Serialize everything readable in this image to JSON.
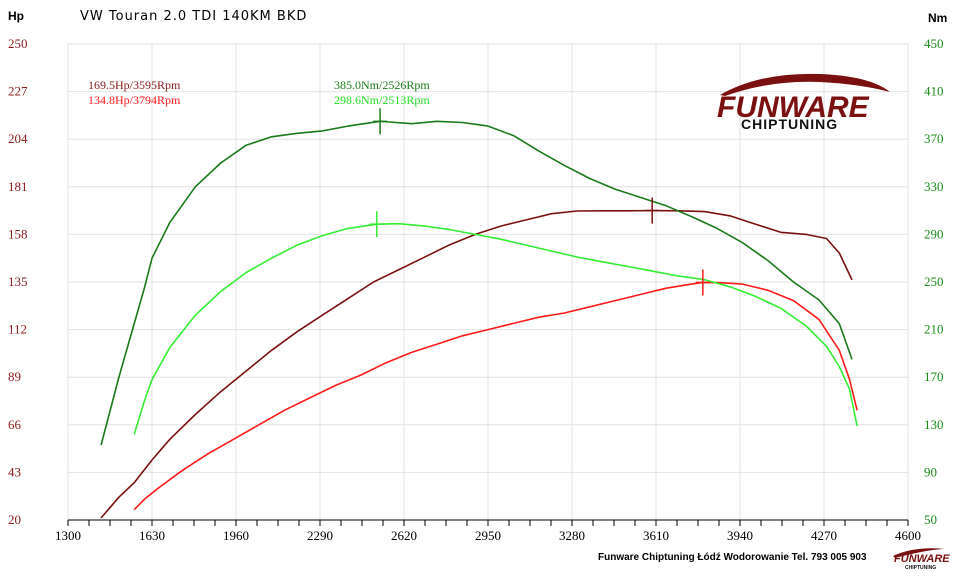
{
  "title": "VW Touran 2.0 TDI 140KM BKD",
  "footer": "Funware Chiptuning Łódź Wodorowanie Tel. 793 005 903",
  "logo": {
    "main": "FUNWARE",
    "sub": "CHIPTUNING",
    "mini_main": "FUNWARE",
    "mini_sub": "CHIPTUNING"
  },
  "chart_data": {
    "type": "line",
    "y_left_label": "Hp",
    "y_right_label": "Nm",
    "x_ticks": [
      1300,
      1630,
      1960,
      2290,
      2620,
      2950,
      3280,
      3610,
      3940,
      4270,
      4600
    ],
    "y_left_ticks": [
      20,
      43,
      66,
      89,
      112,
      135,
      158,
      181,
      204,
      227,
      250
    ],
    "y_right_ticks": [
      50,
      90,
      130,
      170,
      210,
      250,
      290,
      330,
      370,
      410,
      450
    ],
    "xlim": [
      1300,
      4600
    ],
    "ylim_left": [
      20,
      250
    ],
    "ylim_right": [
      50,
      450
    ],
    "grid": true,
    "colors": {
      "tuned_hp": "#7a1010",
      "stock_hp": "#ff1a1a",
      "tuned_nm": "#1a7a1a",
      "stock_nm": "#33ee33"
    },
    "annotations": [
      {
        "text": "169.5Hp/3595Rpm",
        "color": "#8b1a1a"
      },
      {
        "text": "134.8Hp/3794Rpm",
        "color": "#ff1a1a"
      },
      {
        "text": "385.0Nm/2526Rpm",
        "color": "#1a7a1a"
      },
      {
        "text": "298.6Nm/2513Rpm",
        "color": "#22dd22"
      }
    ],
    "series": [
      {
        "key": "tuned_hp",
        "axis": "left",
        "x": [
          1430,
          1500,
          1560,
          1630,
          1700,
          1800,
          1900,
          2000,
          2100,
          2200,
          2300,
          2400,
          2500,
          2600,
          2700,
          2800,
          2900,
          3000,
          3100,
          3200,
          3300,
          3400,
          3500,
          3595,
          3700,
          3800,
          3900,
          4000,
          4100,
          4200,
          4280,
          4330,
          4380
        ],
        "y": [
          21,
          31,
          38,
          49,
          59,
          71,
          82,
          92,
          102,
          111,
          119,
          127,
          135,
          141,
          147,
          153,
          158,
          162,
          165,
          168,
          169.3,
          169.4,
          169.4,
          169.5,
          169.4,
          169,
          167,
          163,
          159,
          158,
          156,
          149,
          136
        ]
      },
      {
        "key": "stock_hp",
        "axis": "left",
        "x": [
          1560,
          1600,
          1650,
          1750,
          1850,
          1950,
          2050,
          2150,
          2250,
          2350,
          2450,
          2550,
          2650,
          2750,
          2850,
          2950,
          3050,
          3150,
          3250,
          3350,
          3450,
          3550,
          3650,
          3750,
          3794,
          3850,
          3950,
          4050,
          4150,
          4250,
          4330,
          4370,
          4400
        ],
        "y": [
          25,
          30,
          35,
          44,
          52,
          59,
          66,
          73,
          79,
          85,
          90,
          96,
          101,
          105,
          109,
          112,
          115,
          118,
          120,
          123,
          126,
          129,
          132,
          134,
          134.8,
          134.7,
          134,
          131,
          126,
          117,
          102,
          88,
          73
        ]
      },
      {
        "key": "tuned_nm",
        "axis": "right",
        "x": [
          1430,
          1500,
          1560,
          1600,
          1630,
          1700,
          1800,
          1900,
          2000,
          2100,
          2200,
          2300,
          2400,
          2526,
          2650,
          2750,
          2850,
          2950,
          3050,
          3150,
          3250,
          3350,
          3450,
          3550,
          3650,
          3750,
          3850,
          3950,
          4050,
          4150,
          4250,
          4330,
          4380
        ],
        "y": [
          113,
          170,
          215,
          245,
          270,
          300,
          330,
          350,
          365,
          372,
          375,
          377,
          381,
          385,
          383,
          385,
          384,
          381,
          373,
          360,
          348,
          337,
          328,
          321,
          314,
          305,
          295,
          283,
          268,
          250,
          235,
          215,
          185
        ]
      },
      {
        "key": "stock_nm",
        "axis": "right",
        "x": [
          1560,
          1600,
          1630,
          1700,
          1800,
          1900,
          2000,
          2100,
          2200,
          2300,
          2400,
          2513,
          2600,
          2700,
          2800,
          2900,
          3000,
          3100,
          3200,
          3300,
          3400,
          3500,
          3600,
          3700,
          3800,
          3900,
          4000,
          4100,
          4200,
          4280,
          4330,
          4370,
          4400
        ],
        "y": [
          122,
          150,
          168,
          195,
          222,
          242,
          258,
          270,
          281,
          289,
          295,
          298.6,
          299,
          297,
          294,
          290,
          286,
          281,
          276,
          271,
          267,
          263,
          259,
          255,
          252,
          246,
          238,
          228,
          213,
          196,
          179,
          160,
          129
        ]
      }
    ],
    "markers": [
      {
        "series": "tuned_hp",
        "x": 3595,
        "y": 169.5
      },
      {
        "series": "stock_hp",
        "x": 3794,
        "y": 134.8
      },
      {
        "series": "tuned_nm",
        "x": 2526,
        "y": 385.0
      },
      {
        "series": "stock_nm",
        "x": 2513,
        "y": 298.6
      }
    ]
  }
}
